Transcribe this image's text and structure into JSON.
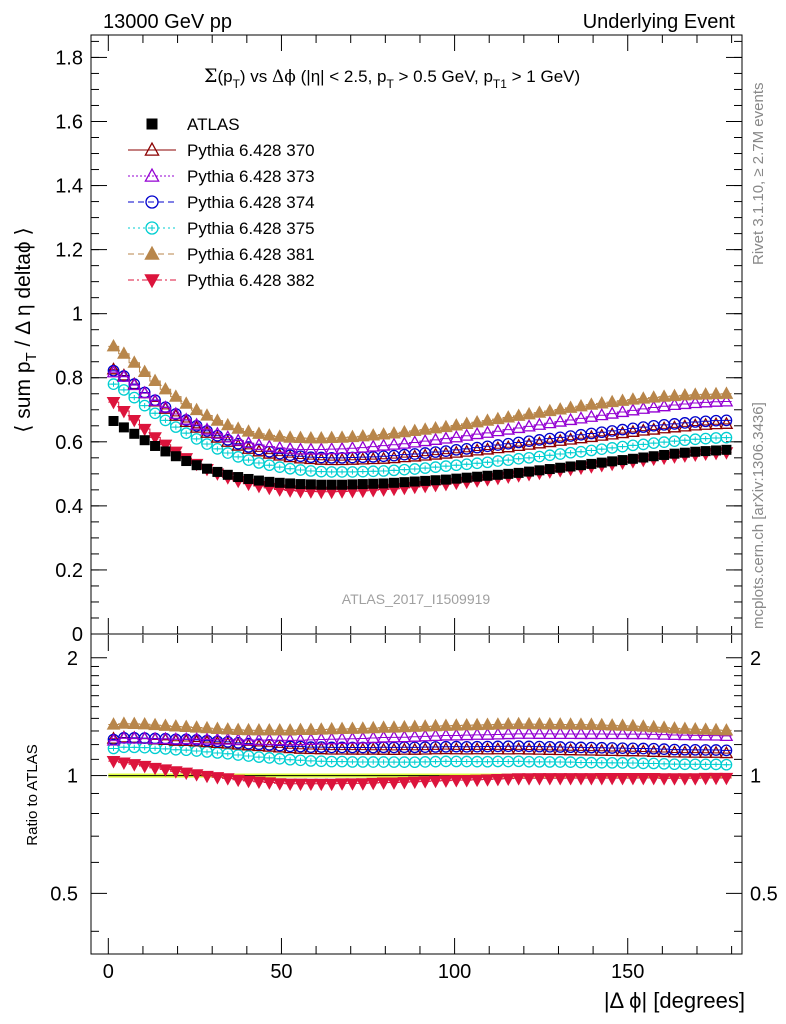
{
  "header": {
    "left": "13000 GeV pp",
    "right": "Underlying Event"
  },
  "side_labels": {
    "rivet": "Rivet 3.1.10, ≥ 2.7M events",
    "mcplots": "mcplots.cern.ch [arXiv:1306.3436]"
  },
  "colors": {
    "atlas": "#000000",
    "p370": "#8b0000",
    "p373": "#9400d3",
    "p374": "#0000cd",
    "p375": "#00ced1",
    "p381": "#b8864b",
    "p382": "#dc143c",
    "band": "#dfff40"
  },
  "chart_data": {
    "type": "scatter",
    "title": "Σ(p_T) vs Δφ (|η| < 2.5, p_T > 0.5 GeV, p_T1 > 1 GeV)",
    "analysis_label": "ATLAS_2017_I1509919",
    "xlabel": "|Δ ϕ| [degrees]",
    "ylabel": "⟨ sum p_T / Δ η deltaϕ ⟩",
    "ratio_ylabel": "Ratio to ATLAS",
    "xlim": [
      -5,
      183
    ],
    "ylim": [
      0,
      1.87
    ],
    "ratio_ylim": [
      0.35,
      2.3
    ],
    "log_ratio_axis": true,
    "x_ticks": [
      0,
      50,
      100,
      150
    ],
    "y_ticks": [
      "0",
      "0.2",
      "0.4",
      "0.6",
      "0.8",
      "1",
      "1.2",
      "1.4",
      "1.6",
      "1.8"
    ],
    "y_tick_values": [
      0,
      0.2,
      0.4,
      0.6,
      0.8,
      1,
      1.2,
      1.4,
      1.6,
      1.8
    ],
    "ratio_ticks": [
      "0.5",
      "1",
      "2"
    ],
    "ratio_tick_values": [
      0.5,
      1,
      2
    ],
    "legend_position": "top-left",
    "x": [
      1.5,
      4.5,
      7.5,
      10.5,
      13.5,
      16.5,
      19.5,
      22.5,
      25.5,
      28.5,
      31.5,
      34.5,
      37.5,
      40.5,
      43.5,
      46.5,
      49.5,
      52.5,
      55.5,
      58.5,
      61.5,
      64.5,
      67.5,
      70.5,
      73.5,
      76.5,
      79.5,
      82.5,
      85.5,
      88.5,
      91.5,
      94.5,
      97.5,
      100.5,
      103.5,
      106.5,
      109.5,
      112.5,
      115.5,
      118.5,
      121.5,
      124.5,
      127.5,
      130.5,
      133.5,
      136.5,
      139.5,
      142.5,
      145.5,
      148.5,
      151.5,
      154.5,
      157.5,
      160.5,
      163.5,
      166.5,
      169.5,
      172.5,
      175.5,
      178.5
    ],
    "series": [
      {
        "name": "ATLAS",
        "marker": "square",
        "values": [
          0.665,
          0.645,
          0.625,
          0.605,
          0.587,
          0.57,
          0.555,
          0.54,
          0.527,
          0.516,
          0.506,
          0.497,
          0.49,
          0.484,
          0.479,
          0.475,
          0.472,
          0.47,
          0.468,
          0.467,
          0.466,
          0.466,
          0.466,
          0.467,
          0.468,
          0.469,
          0.47,
          0.472,
          0.474,
          0.476,
          0.478,
          0.48,
          0.482,
          0.485,
          0.488,
          0.491,
          0.494,
          0.497,
          0.5,
          0.503,
          0.507,
          0.511,
          0.515,
          0.519,
          0.523,
          0.527,
          0.531,
          0.535,
          0.539,
          0.543,
          0.547,
          0.551,
          0.555,
          0.559,
          0.563,
          0.566,
          0.569,
          0.571,
          0.573,
          0.575
        ]
      },
      {
        "name": "Pythia 6.428 370",
        "marker": "triangle-open",
        "values": [
          0.826,
          0.807,
          0.78,
          0.752,
          0.726,
          0.703,
          0.681,
          0.662,
          0.644,
          0.628,
          0.613,
          0.6,
          0.588,
          0.578,
          0.57,
          0.563,
          0.557,
          0.552,
          0.548,
          0.546,
          0.544,
          0.543,
          0.543,
          0.544,
          0.545,
          0.546,
          0.547,
          0.549,
          0.552,
          0.554,
          0.557,
          0.56,
          0.563,
          0.566,
          0.569,
          0.573,
          0.576,
          0.58,
          0.583,
          0.587,
          0.591,
          0.595,
          0.599,
          0.603,
          0.607,
          0.611,
          0.615,
          0.619,
          0.623,
          0.627,
          0.631,
          0.635,
          0.638,
          0.642,
          0.645,
          0.648,
          0.651,
          0.653,
          0.655,
          0.656
        ]
      },
      {
        "name": "Pythia 6.428 373",
        "marker": "triangle-open",
        "values": [
          0.817,
          0.803,
          0.777,
          0.752,
          0.728,
          0.707,
          0.687,
          0.669,
          0.653,
          0.638,
          0.625,
          0.614,
          0.604,
          0.596,
          0.59,
          0.585,
          0.581,
          0.578,
          0.576,
          0.576,
          0.576,
          0.577,
          0.578,
          0.58,
          0.582,
          0.585,
          0.588,
          0.591,
          0.594,
          0.598,
          0.602,
          0.606,
          0.61,
          0.614,
          0.619,
          0.624,
          0.628,
          0.633,
          0.638,
          0.643,
          0.648,
          0.653,
          0.658,
          0.663,
          0.668,
          0.673,
          0.678,
          0.683,
          0.688,
          0.693,
          0.698,
          0.703,
          0.707,
          0.711,
          0.715,
          0.718,
          0.721,
          0.723,
          0.725,
          0.726
        ]
      },
      {
        "name": "Pythia 6.428 374",
        "marker": "circle-open",
        "values": [
          0.822,
          0.805,
          0.78,
          0.754,
          0.73,
          0.708,
          0.687,
          0.668,
          0.65,
          0.634,
          0.619,
          0.606,
          0.594,
          0.584,
          0.576,
          0.569,
          0.563,
          0.558,
          0.555,
          0.552,
          0.551,
          0.55,
          0.55,
          0.551,
          0.552,
          0.553,
          0.555,
          0.557,
          0.56,
          0.562,
          0.565,
          0.568,
          0.571,
          0.575,
          0.578,
          0.582,
          0.586,
          0.59,
          0.594,
          0.598,
          0.602,
          0.606,
          0.61,
          0.614,
          0.618,
          0.622,
          0.626,
          0.63,
          0.634,
          0.638,
          0.642,
          0.646,
          0.65,
          0.653,
          0.656,
          0.659,
          0.662,
          0.664,
          0.666,
          0.667
        ]
      },
      {
        "name": "Pythia 6.428 375",
        "marker": "circle-dot",
        "values": [
          0.78,
          0.762,
          0.738,
          0.713,
          0.689,
          0.667,
          0.646,
          0.627,
          0.609,
          0.593,
          0.578,
          0.565,
          0.553,
          0.543,
          0.534,
          0.527,
          0.521,
          0.516,
          0.512,
          0.509,
          0.507,
          0.506,
          0.506,
          0.506,
          0.507,
          0.508,
          0.509,
          0.511,
          0.513,
          0.515,
          0.518,
          0.521,
          0.524,
          0.527,
          0.53,
          0.533,
          0.536,
          0.54,
          0.543,
          0.547,
          0.55,
          0.554,
          0.558,
          0.562,
          0.566,
          0.569,
          0.573,
          0.577,
          0.581,
          0.585,
          0.589,
          0.592,
          0.596,
          0.599,
          0.602,
          0.605,
          0.608,
          0.61,
          0.612,
          0.613
        ]
      },
      {
        "name": "Pythia 6.428 381",
        "marker": "triangle-filled",
        "values": [
          0.898,
          0.875,
          0.847,
          0.818,
          0.79,
          0.764,
          0.741,
          0.719,
          0.699,
          0.682,
          0.666,
          0.652,
          0.641,
          0.632,
          0.625,
          0.62,
          0.616,
          0.613,
          0.612,
          0.611,
          0.611,
          0.612,
          0.613,
          0.615,
          0.617,
          0.62,
          0.623,
          0.626,
          0.63,
          0.634,
          0.638,
          0.642,
          0.646,
          0.651,
          0.656,
          0.661,
          0.666,
          0.671,
          0.676,
          0.681,
          0.686,
          0.691,
          0.696,
          0.701,
          0.706,
          0.711,
          0.716,
          0.72,
          0.724,
          0.728,
          0.732,
          0.735,
          0.738,
          0.741,
          0.743,
          0.745,
          0.747,
          0.748,
          0.749,
          0.75
        ]
      },
      {
        "name": "Pythia 6.428 382",
        "marker": "triangle-down-filled",
        "values": [
          0.724,
          0.696,
          0.668,
          0.64,
          0.614,
          0.591,
          0.569,
          0.549,
          0.531,
          0.515,
          0.501,
          0.489,
          0.478,
          0.469,
          0.462,
          0.456,
          0.451,
          0.448,
          0.446,
          0.445,
          0.444,
          0.444,
          0.445,
          0.446,
          0.447,
          0.449,
          0.451,
          0.453,
          0.456,
          0.459,
          0.462,
          0.465,
          0.468,
          0.472,
          0.475,
          0.479,
          0.483,
          0.487,
          0.491,
          0.495,
          0.499,
          0.503,
          0.507,
          0.511,
          0.515,
          0.519,
          0.523,
          0.527,
          0.531,
          0.535,
          0.539,
          0.543,
          0.547,
          0.55,
          0.554,
          0.557,
          0.56,
          0.563,
          0.565,
          0.567
        ]
      }
    ]
  }
}
